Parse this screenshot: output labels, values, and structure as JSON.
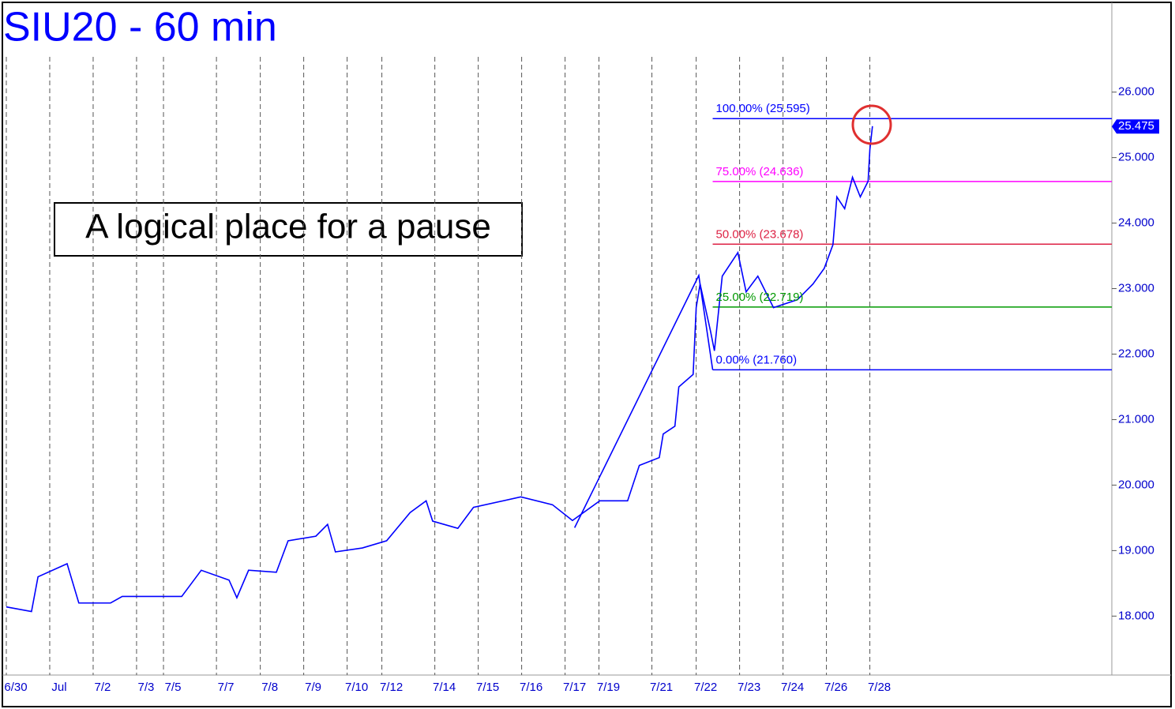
{
  "chart_data": {
    "type": "line",
    "title": "SIU20 - 60 min",
    "annotation": "A logical place for a pause",
    "xticks": [
      {
        "value": 0,
        "label": "6/30"
      },
      {
        "value": 1,
        "label": "Jul"
      },
      {
        "value": 2,
        "label": "7/2"
      },
      {
        "value": 3,
        "label": "7/3"
      },
      {
        "value": 3.62,
        "label": "7/5"
      },
      {
        "value": 4.84,
        "label": "7/7"
      },
      {
        "value": 5.85,
        "label": "7/8"
      },
      {
        "value": 6.85,
        "label": "7/9"
      },
      {
        "value": 7.85,
        "label": "7/10"
      },
      {
        "value": 8.65,
        "label": "7/12"
      },
      {
        "value": 9.87,
        "label": "7/14"
      },
      {
        "value": 10.87,
        "label": "7/15"
      },
      {
        "value": 11.87,
        "label": "7/16"
      },
      {
        "value": 12.87,
        "label": "7/17"
      },
      {
        "value": 13.65,
        "label": "7/19"
      },
      {
        "value": 14.87,
        "label": "7/21"
      },
      {
        "value": 15.89,
        "label": "7/22"
      },
      {
        "value": 16.89,
        "label": "7/23"
      },
      {
        "value": 17.89,
        "label": "7/24"
      },
      {
        "value": 18.89,
        "label": "7/26"
      },
      {
        "value": 19.89,
        "label": "7/28"
      }
    ],
    "xlim": [
      0,
      25.5
    ],
    "ylim": [
      17.1,
      27.37
    ],
    "yticks": [
      {
        "value": 18,
        "label": "18.000"
      },
      {
        "value": 19,
        "label": "19.000"
      },
      {
        "value": 20,
        "label": "20.000"
      },
      {
        "value": 21,
        "label": "21.000"
      },
      {
        "value": 22,
        "label": "22.000"
      },
      {
        "value": 23,
        "label": "23.000"
      },
      {
        "value": 24,
        "label": "24.000"
      },
      {
        "value": 25,
        "label": "25.000"
      },
      {
        "value": 26,
        "label": "26.000"
      }
    ],
    "series": [
      {
        "color": "#0000ff",
        "x": [
          0,
          0.58,
          0.73,
          1.4,
          1.67,
          2.4,
          2.67,
          4.04,
          4.49,
          5.13,
          5.31,
          5.58,
          6.22,
          6.49,
          7.13,
          7.4,
          7.58,
          8.2,
          8.76,
          9.3,
          9.67,
          9.82,
          10.4,
          10.76,
          11.85,
          12.58,
          13.04,
          13.67,
          14.31,
          14.58,
          15.04,
          15.13,
          15.4,
          15.49,
          15.82,
          15.89,
          15.98,
          16.22,
          16.31,
          16.49,
          16.85,
          17.04,
          17.31,
          17.67,
          18.22,
          18.58,
          18.84,
          19.04,
          19.13,
          19.31,
          19.49,
          19.67,
          19.85,
          19.89,
          19.95
        ],
        "values": [
          18.14,
          18.07,
          18.6,
          18.8,
          18.2,
          18.2,
          18.3,
          18.3,
          18.7,
          18.55,
          18.28,
          18.7,
          18.67,
          19.15,
          19.22,
          19.4,
          18.98,
          19.04,
          19.15,
          19.58,
          19.76,
          19.45,
          19.34,
          19.66,
          19.82,
          19.7,
          19.46,
          19.76,
          19.76,
          20.3,
          20.42,
          20.78,
          20.9,
          21.5,
          21.69,
          22.71,
          23.07,
          22.35,
          22.05,
          23.19,
          23.55,
          22.95,
          23.19,
          22.71,
          22.83,
          23.07,
          23.31,
          23.67,
          24.4,
          24.22,
          24.7,
          24.4,
          24.64,
          25.12,
          25.48
        ]
      },
      {
        "color": "#0000ff",
        "x": [
          13.09,
          15.95,
          16.27
        ],
        "values": [
          19.35,
          23.2,
          21.76
        ]
      }
    ],
    "fib_levels": [
      {
        "label": "100.00% (25.595)",
        "value": 25.595,
        "color": "#0000ff"
      },
      {
        "label": "75.00% (24.636)",
        "value": 24.636,
        "color": "#ff00ff"
      },
      {
        "label": "50.00% (23.678)",
        "value": 23.678,
        "color": "#dd2244"
      },
      {
        "label": "25.00% (22.719)",
        "value": 22.719,
        "color": "#009900"
      },
      {
        "label": "0.00% (21.760)",
        "value": 21.76,
        "color": "#0000ff"
      }
    ],
    "fib_start_x": 16.27,
    "last_price": {
      "value": 25.475,
      "label": "25.475"
    }
  }
}
